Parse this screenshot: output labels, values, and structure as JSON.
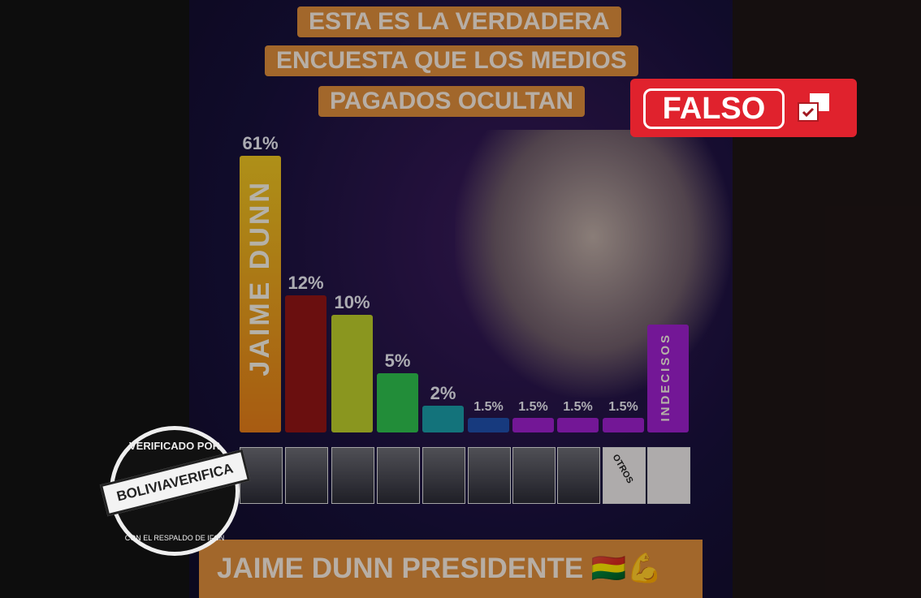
{
  "title_lines": [
    "ESTA ES LA VERDADERA",
    "ENCUESTA QUE LOS MEDIOS",
    "PAGADOS OCULTAN"
  ],
  "falso_label": "FALSO",
  "stamp": {
    "top": "VERIFICADO POR",
    "brand": "BOLIVIAVERIFICA",
    "bottom": "CON EL RESPALDO DE IFCN"
  },
  "banner": {
    "text": "JAIME DUNN PRESIDENTE",
    "emoji": "🇧🇴💪"
  },
  "chart_data": {
    "type": "bar",
    "categories": [
      "JAIME DUNN",
      "",
      "",
      "",
      "",
      "",
      "",
      "",
      "OTROS",
      "INDECISOS"
    ],
    "values": [
      61,
      12,
      10,
      5,
      2,
      1.5,
      1.5,
      1.5,
      1.5,
      null
    ],
    "labels": [
      "61%",
      "12%",
      "10%",
      "5%",
      "2%",
      "1.5%",
      "1.5%",
      "1.5%",
      "1.5%",
      ""
    ],
    "bar_text": [
      "JAIME DUNN",
      "",
      "",
      "",
      "",
      "",
      "",
      "",
      "",
      "INDECISOS"
    ],
    "colors": [
      "#e0a81c",
      "#8e1515",
      "#b9c82a",
      "#2ebd4c",
      "#1a9aa4",
      "#1f4ea8",
      "#9a1fc8",
      "#9a1fc8",
      "#9a1fc8",
      "#9a1fc8"
    ],
    "photo_labels": [
      "",
      "",
      "",
      "",
      "",
      "",
      "",
      "",
      "OTROS",
      ""
    ]
  }
}
